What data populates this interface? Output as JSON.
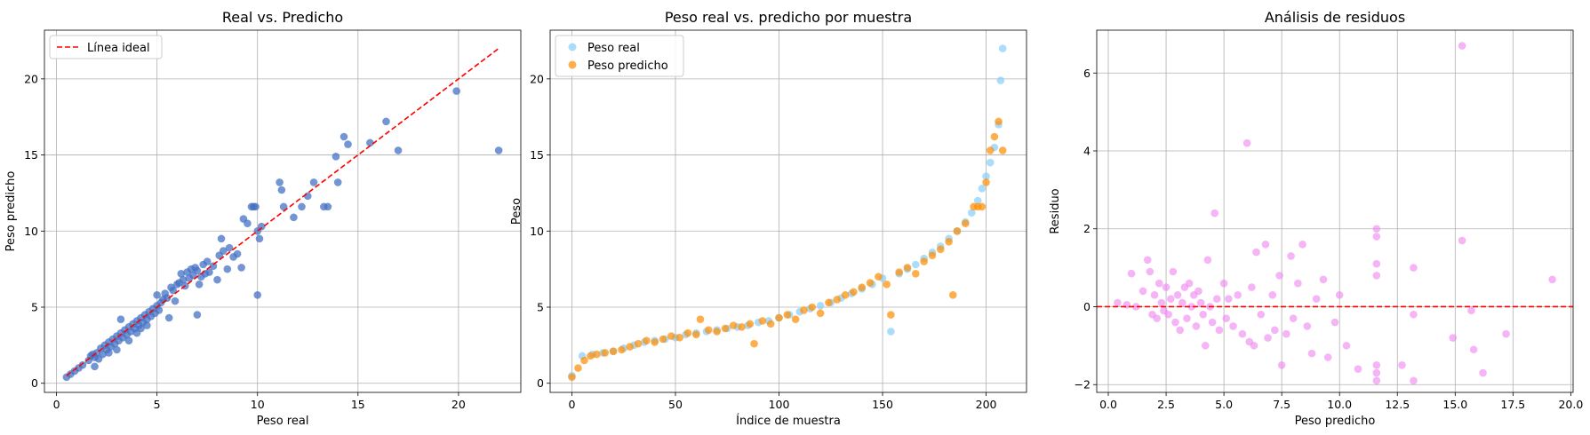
{
  "chart_data": [
    {
      "type": "scatter",
      "title": "Real vs. Predicho",
      "xlabel": "Peso real",
      "ylabel": "Peso predicho",
      "xlim": [
        -0.6,
        23.1
      ],
      "ylim": [
        -0.6,
        23.2
      ],
      "xticks": [
        0,
        5,
        10,
        15,
        20
      ],
      "yticks": [
        0,
        5,
        10,
        15,
        20
      ],
      "grid": true,
      "legend": "top-left",
      "colors": {
        "points": "#4472c4",
        "ideal": "#ff0000"
      },
      "ideal_line": {
        "label": "Línea ideal",
        "x": [
          0.5,
          22
        ],
        "y": [
          0.5,
          22
        ]
      },
      "series": [
        {
          "points": [
            [
              0.5,
              0.4
            ],
            [
              0.7,
              0.6
            ],
            [
              0.9,
              0.8
            ],
            [
              1.1,
              1.0
            ],
            [
              1.3,
              1.2
            ],
            [
              1.6,
              1.5
            ],
            [
              1.7,
              1.8
            ],
            [
              1.8,
              1.9
            ],
            [
              1.9,
              1.7
            ],
            [
              1.9,
              1.1
            ],
            [
              2.0,
              2.0
            ],
            [
              2.1,
              1.6
            ],
            [
              2.2,
              2.3
            ],
            [
              2.3,
              1.9
            ],
            [
              2.4,
              2.5
            ],
            [
              2.5,
              2.2
            ],
            [
              2.6,
              2.7
            ],
            [
              2.6,
              2.0
            ],
            [
              2.7,
              2.4
            ],
            [
              2.8,
              2.9
            ],
            [
              2.9,
              2.6
            ],
            [
              3.0,
              3.1
            ],
            [
              3.0,
              2.2
            ],
            [
              3.1,
              2.8
            ],
            [
              3.2,
              3.3
            ],
            [
              3.2,
              4.2
            ],
            [
              3.3,
              3.0
            ],
            [
              3.4,
              3.5
            ],
            [
              3.5,
              3.2
            ],
            [
              3.6,
              3.7
            ],
            [
              3.6,
              2.8
            ],
            [
              3.7,
              3.4
            ],
            [
              3.8,
              3.9
            ],
            [
              3.9,
              3.6
            ],
            [
              4.0,
              4.1
            ],
            [
              4.0,
              3.3
            ],
            [
              4.1,
              3.8
            ],
            [
              4.2,
              4.3
            ],
            [
              4.2,
              3.6
            ],
            [
              4.3,
              4.0
            ],
            [
              4.4,
              4.5
            ],
            [
              4.5,
              3.8
            ],
            [
              4.5,
              4.2
            ],
            [
              4.6,
              4.7
            ],
            [
              4.7,
              4.4
            ],
            [
              4.8,
              4.9
            ],
            [
              4.9,
              4.6
            ],
            [
              5.0,
              5.1
            ],
            [
              5.0,
              5.8
            ],
            [
              5.1,
              4.8
            ],
            [
              5.2,
              5.3
            ],
            [
              5.3,
              5.5
            ],
            [
              5.4,
              5.9
            ],
            [
              5.5,
              5.6
            ],
            [
              5.6,
              4.3
            ],
            [
              5.7,
              6.3
            ],
            [
              5.8,
              6.1
            ],
            [
              5.9,
              5.4
            ],
            [
              6.0,
              6.5
            ],
            [
              6.1,
              6.6
            ],
            [
              6.2,
              7.2
            ],
            [
              6.3,
              6.8
            ],
            [
              6.4,
              6.4
            ],
            [
              6.5,
              7.3
            ],
            [
              6.6,
              6.9
            ],
            [
              6.7,
              7.5
            ],
            [
              6.8,
              7.1
            ],
            [
              6.9,
              7.6
            ],
            [
              7.0,
              7.4
            ],
            [
              7.0,
              4.5
            ],
            [
              7.1,
              6.5
            ],
            [
              7.2,
              7.0
            ],
            [
              7.3,
              7.8
            ],
            [
              7.4,
              7.2
            ],
            [
              7.5,
              8.0
            ],
            [
              7.6,
              7.3
            ],
            [
              7.8,
              7.7
            ],
            [
              8.0,
              6.8
            ],
            [
              8.1,
              8.4
            ],
            [
              8.2,
              9.5
            ],
            [
              8.3,
              8.7
            ],
            [
              8.5,
              7.5
            ],
            [
              8.6,
              8.9
            ],
            [
              8.8,
              8.3
            ],
            [
              9.0,
              8.5
            ],
            [
              9.2,
              7.6
            ],
            [
              9.3,
              10.8
            ],
            [
              9.5,
              10.5
            ],
            [
              9.7,
              11.6
            ],
            [
              9.8,
              11.6
            ],
            [
              9.9,
              11.6
            ],
            [
              10.0,
              10.0
            ],
            [
              10.0,
              5.8
            ],
            [
              10.1,
              9.5
            ],
            [
              10.2,
              10.3
            ],
            [
              11.1,
              13.2
            ],
            [
              11.2,
              12.7
            ],
            [
              11.3,
              11.6
            ],
            [
              11.8,
              10.9
            ],
            [
              12.2,
              11.6
            ],
            [
              12.5,
              12.3
            ],
            [
              12.8,
              13.2
            ],
            [
              13.3,
              11.6
            ],
            [
              13.5,
              11.6
            ],
            [
              13.9,
              14.9
            ],
            [
              14.0,
              13.2
            ],
            [
              14.3,
              16.2
            ],
            [
              14.5,
              15.7
            ],
            [
              15.6,
              15.8
            ],
            [
              16.4,
              17.2
            ],
            [
              17.0,
              15.3
            ],
            [
              19.9,
              19.2
            ],
            [
              22.0,
              15.3
            ]
          ]
        }
      ]
    },
    {
      "type": "scatter",
      "title": "Peso real vs. predicho por muestra",
      "xlabel": "Índice de muestra",
      "ylabel": "Peso",
      "xlim": [
        -10.5,
        219.5
      ],
      "ylim": [
        -0.6,
        23.2
      ],
      "xticks": [
        0,
        50,
        100,
        150,
        200
      ],
      "yticks": [
        0,
        5,
        10,
        15,
        20
      ],
      "grid": true,
      "legend": "top-left",
      "colors": {
        "Peso real": "#87cefa",
        "Peso predicho": "#ff8c00"
      },
      "series": [
        {
          "name": "Peso real",
          "x": [
            0,
            5,
            10,
            15,
            20,
            25,
            30,
            35,
            40,
            45,
            50,
            55,
            60,
            65,
            70,
            75,
            80,
            85,
            90,
            95,
            100,
            105,
            110,
            115,
            120,
            125,
            130,
            135,
            140,
            145,
            150,
            154,
            158,
            162,
            166,
            170,
            174,
            178,
            182,
            186,
            190,
            193,
            196,
            198,
            200,
            202,
            204,
            206,
            207,
            208
          ],
          "y": [
            0.5,
            1.8,
            1.9,
            2.0,
            2.1,
            2.3,
            2.5,
            2.7,
            2.8,
            2.9,
            3.0,
            3.2,
            3.3,
            3.4,
            3.5,
            3.6,
            3.7,
            3.8,
            4.0,
            4.1,
            4.3,
            4.5,
            4.7,
            4.9,
            5.1,
            5.3,
            5.6,
            5.9,
            6.2,
            6.5,
            6.9,
            3.4,
            7.2,
            7.5,
            7.8,
            8.2,
            8.6,
            9.0,
            9.5,
            10.0,
            10.6,
            11.2,
            12.0,
            12.8,
            13.6,
            14.5,
            15.5,
            17.0,
            19.9,
            22.0
          ]
        },
        {
          "name": "Peso predicho",
          "x": [
            0,
            3,
            6,
            9,
            12,
            16,
            20,
            24,
            28,
            32,
            36,
            40,
            44,
            48,
            52,
            56,
            60,
            62,
            66,
            70,
            74,
            78,
            82,
            86,
            88,
            92,
            96,
            100,
            104,
            108,
            112,
            116,
            120,
            124,
            128,
            132,
            136,
            140,
            144,
            148,
            152,
            154,
            158,
            162,
            166,
            170,
            174,
            178,
            182,
            184,
            186,
            190,
            194,
            196,
            198,
            200,
            202,
            204,
            206,
            208
          ],
          "y": [
            0.4,
            1.0,
            1.5,
            1.8,
            1.9,
            2.0,
            2.1,
            2.2,
            2.4,
            2.6,
            2.8,
            2.7,
            2.9,
            3.1,
            3.0,
            3.3,
            3.2,
            4.2,
            3.5,
            3.4,
            3.6,
            3.8,
            3.7,
            3.9,
            2.6,
            4.1,
            3.9,
            4.3,
            4.5,
            4.2,
            4.8,
            5.0,
            4.6,
            5.3,
            5.5,
            5.8,
            6.0,
            6.3,
            6.6,
            7.0,
            6.5,
            4.5,
            7.3,
            7.6,
            7.2,
            8.0,
            8.4,
            8.8,
            9.3,
            5.8,
            10.0,
            10.5,
            11.6,
            11.6,
            11.6,
            13.2,
            15.3,
            16.2,
            17.2,
            15.3
          ]
        }
      ]
    },
    {
      "type": "scatter",
      "title": "Análisis de residuos",
      "xlabel": "Peso predicho",
      "ylabel": "Residuo",
      "xlim": [
        -0.5,
        20.1
      ],
      "ylim": [
        -2.2,
        7.1
      ],
      "xticks": [
        "0.0",
        "2.5",
        "5.0",
        "7.5",
        "10.0",
        "12.5",
        "15.0",
        "17.5",
        "20.0"
      ],
      "yticks": [
        "−2",
        "0",
        "2",
        "4",
        "6"
      ],
      "grid": true,
      "colors": {
        "points": "#ee82ee",
        "zero": "#ff0000"
      },
      "zero_line": 0,
      "series": [
        {
          "points": [
            [
              0.4,
              0.1
            ],
            [
              0.8,
              0.05
            ],
            [
              1.0,
              0.85
            ],
            [
              1.2,
              0.0
            ],
            [
              1.5,
              0.4
            ],
            [
              1.7,
              1.2
            ],
            [
              1.8,
              0.9
            ],
            [
              1.9,
              -0.2
            ],
            [
              2.0,
              0.3
            ],
            [
              2.1,
              -0.3
            ],
            [
              2.2,
              0.6
            ],
            [
              2.3,
              0.1
            ],
            [
              2.4,
              -0.1
            ],
            [
              2.5,
              0.5
            ],
            [
              2.6,
              -0.2
            ],
            [
              2.7,
              0.2
            ],
            [
              2.8,
              0.9
            ],
            [
              2.9,
              -0.4
            ],
            [
              3.0,
              0.3
            ],
            [
              3.1,
              -0.6
            ],
            [
              3.2,
              0.1
            ],
            [
              3.3,
              0.5
            ],
            [
              3.4,
              -0.3
            ],
            [
              3.5,
              0.6
            ],
            [
              3.6,
              0.0
            ],
            [
              3.7,
              0.3
            ],
            [
              3.8,
              -0.5
            ],
            [
              3.9,
              0.4
            ],
            [
              4.0,
              0.1
            ],
            [
              4.1,
              -0.2
            ],
            [
              4.2,
              -1.0
            ],
            [
              4.3,
              1.2
            ],
            [
              4.4,
              0.0
            ],
            [
              4.5,
              -0.4
            ],
            [
              4.6,
              2.4
            ],
            [
              4.7,
              0.2
            ],
            [
              4.8,
              -0.6
            ],
            [
              5.0,
              0.6
            ],
            [
              5.1,
              -0.3
            ],
            [
              5.2,
              0.2
            ],
            [
              5.4,
              -0.5
            ],
            [
              5.6,
              0.3
            ],
            [
              5.8,
              -0.7
            ],
            [
              6.0,
              4.2
            ],
            [
              6.1,
              -0.9
            ],
            [
              6.2,
              0.5
            ],
            [
              6.3,
              -1.0
            ],
            [
              6.4,
              1.4
            ],
            [
              6.6,
              -0.2
            ],
            [
              6.8,
              1.6
            ],
            [
              6.9,
              -0.8
            ],
            [
              7.1,
              0.3
            ],
            [
              7.2,
              -0.6
            ],
            [
              7.4,
              0.8
            ],
            [
              7.5,
              -1.5
            ],
            [
              7.7,
              -0.7
            ],
            [
              7.9,
              1.3
            ],
            [
              8.0,
              -0.3
            ],
            [
              8.2,
              0.6
            ],
            [
              8.4,
              1.6
            ],
            [
              8.6,
              -0.5
            ],
            [
              8.8,
              -1.2
            ],
            [
              9.0,
              0.2
            ],
            [
              9.3,
              0.7
            ],
            [
              9.5,
              -1.3
            ],
            [
              9.8,
              -0.4
            ],
            [
              10.0,
              0.3
            ],
            [
              10.3,
              -1.0
            ],
            [
              10.8,
              -1.6
            ],
            [
              11.6,
              2.0
            ],
            [
              11.6,
              1.8
            ],
            [
              11.6,
              1.1
            ],
            [
              11.6,
              0.8
            ],
            [
              11.6,
              -1.5
            ],
            [
              11.6,
              -1.7
            ],
            [
              11.6,
              -1.9
            ],
            [
              12.7,
              -1.5
            ],
            [
              13.2,
              1.0
            ],
            [
              13.2,
              -0.2
            ],
            [
              13.2,
              -1.9
            ],
            [
              14.9,
              -0.8
            ],
            [
              15.3,
              6.7
            ],
            [
              15.3,
              1.7
            ],
            [
              15.7,
              -0.1
            ],
            [
              15.8,
              -1.1
            ],
            [
              16.2,
              -1.7
            ],
            [
              17.2,
              -0.7
            ],
            [
              19.2,
              0.7
            ]
          ]
        }
      ]
    }
  ]
}
